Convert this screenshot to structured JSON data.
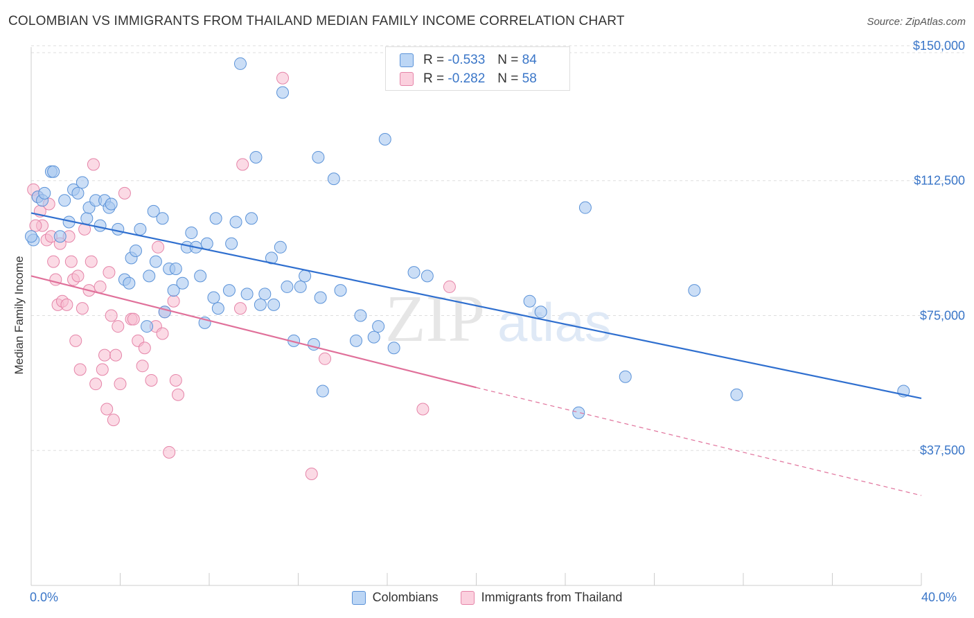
{
  "title": "COLOMBIAN VS IMMIGRANTS FROM THAILAND MEDIAN FAMILY INCOME CORRELATION CHART",
  "source": "Source: ZipAtlas.com",
  "watermark": {
    "zip": "ZIP",
    "atlas": "atlas"
  },
  "legend": {
    "series1": {
      "r_label": "R =",
      "r_value": "-0.533",
      "n_label": "N =",
      "n_value": "84"
    },
    "series2": {
      "r_label": "R =",
      "r_value": "-0.282",
      "n_label": "N =",
      "n_value": "58"
    }
  },
  "colors": {
    "blue_fill": "#a8c8f0",
    "blue_stroke": "#5a92d8",
    "blue_line": "#2f6fcf",
    "pink_fill": "#f7bcd0",
    "pink_stroke": "#e584a8",
    "pink_line": "#e0709a",
    "axis_text": "#3a76c8",
    "grid": "#dddddd"
  },
  "chart_data": {
    "type": "scatter",
    "title": "COLOMBIAN VS IMMIGRANTS FROM THAILAND MEDIAN FAMILY INCOME CORRELATION CHART",
    "xlabel": "",
    "ylabel": "Median Family Income",
    "xlim": [
      0,
      40
    ],
    "ylim": [
      0,
      155000
    ],
    "x_tick_labels": [
      "0.0%",
      "40.0%"
    ],
    "y_ticks": [
      37500,
      75000,
      112500,
      150000
    ],
    "y_tick_labels": [
      "$37,500",
      "$75,000",
      "$112,500",
      "$150,000"
    ],
    "grid": true,
    "legend_position": "top-center",
    "series": [
      {
        "name": "Colombians",
        "r": -0.533,
        "n": 84,
        "trend": {
          "x": [
            0,
            40
          ],
          "y": [
            103500,
            52000
          ]
        },
        "points": [
          [
            0.1,
            96000
          ],
          [
            0.3,
            108000
          ],
          [
            0.5,
            107000
          ],
          [
            0.6,
            109000
          ],
          [
            0.9,
            115000
          ],
          [
            1.0,
            115000
          ],
          [
            1.3,
            97000
          ],
          [
            1.5,
            107000
          ],
          [
            1.7,
            101000
          ],
          [
            1.9,
            110000
          ],
          [
            2.1,
            109000
          ],
          [
            2.3,
            112000
          ],
          [
            2.5,
            102000
          ],
          [
            2.6,
            105000
          ],
          [
            2.9,
            107000
          ],
          [
            3.1,
            100000
          ],
          [
            3.3,
            107000
          ],
          [
            3.5,
            105000
          ],
          [
            3.6,
            106000
          ],
          [
            3.9,
            99000
          ],
          [
            4.2,
            85000
          ],
          [
            4.4,
            84000
          ],
          [
            4.5,
            91000
          ],
          [
            4.7,
            93000
          ],
          [
            4.9,
            99000
          ],
          [
            5.2,
            72000
          ],
          [
            5.3,
            86000
          ],
          [
            5.5,
            104000
          ],
          [
            5.6,
            90000
          ],
          [
            5.9,
            102000
          ],
          [
            6.0,
            76000
          ],
          [
            6.2,
            88000
          ],
          [
            6.4,
            82000
          ],
          [
            6.5,
            88000
          ],
          [
            6.8,
            84000
          ],
          [
            7.0,
            94000
          ],
          [
            7.2,
            98000
          ],
          [
            7.4,
            94000
          ],
          [
            7.6,
            86000
          ],
          [
            7.8,
            73000
          ],
          [
            7.9,
            95000
          ],
          [
            8.2,
            80000
          ],
          [
            8.3,
            102000
          ],
          [
            8.4,
            77000
          ],
          [
            8.9,
            82000
          ],
          [
            9.0,
            95000
          ],
          [
            9.2,
            101000
          ],
          [
            9.4,
            145000
          ],
          [
            9.7,
            81000
          ],
          [
            9.9,
            102000
          ],
          [
            10.1,
            119000
          ],
          [
            10.3,
            78000
          ],
          [
            10.5,
            81000
          ],
          [
            10.8,
            91000
          ],
          [
            10.9,
            78000
          ],
          [
            11.2,
            94000
          ],
          [
            11.3,
            137000
          ],
          [
            11.5,
            83000
          ],
          [
            11.8,
            68000
          ],
          [
            12.1,
            83000
          ],
          [
            12.3,
            86000
          ],
          [
            12.7,
            67000
          ],
          [
            12.9,
            119000
          ],
          [
            13.0,
            80000
          ],
          [
            13.1,
            54000
          ],
          [
            13.6,
            113000
          ],
          [
            13.9,
            82000
          ],
          [
            14.6,
            68000
          ],
          [
            14.8,
            75000
          ],
          [
            15.4,
            69000
          ],
          [
            15.6,
            72000
          ],
          [
            15.9,
            124000
          ],
          [
            16.3,
            66000
          ],
          [
            17.2,
            87000
          ],
          [
            17.8,
            86000
          ],
          [
            22.4,
            79000
          ],
          [
            22.9,
            76000
          ],
          [
            24.6,
            48000
          ],
          [
            24.9,
            105000
          ],
          [
            26.7,
            58000
          ],
          [
            29.8,
            82000
          ],
          [
            31.7,
            53000
          ],
          [
            39.2,
            54000
          ],
          [
            0.0,
            97000
          ]
        ]
      },
      {
        "name": "Immigrants from Thailand",
        "r": -0.282,
        "n": 58,
        "trend": {
          "x": [
            0,
            20
          ],
          "y": [
            86000,
            55000
          ],
          "dashed_to": {
            "x": 40,
            "y": 25000
          }
        },
        "points": [
          [
            0.1,
            110000
          ],
          [
            0.3,
            108000
          ],
          [
            0.4,
            104000
          ],
          [
            0.5,
            100000
          ],
          [
            0.7,
            96000
          ],
          [
            0.8,
            106000
          ],
          [
            0.9,
            97000
          ],
          [
            1.0,
            90000
          ],
          [
            1.1,
            85000
          ],
          [
            1.2,
            78000
          ],
          [
            1.3,
            95000
          ],
          [
            1.4,
            79000
          ],
          [
            1.6,
            78000
          ],
          [
            1.7,
            97000
          ],
          [
            1.8,
            90000
          ],
          [
            1.9,
            85000
          ],
          [
            2.0,
            68000
          ],
          [
            2.1,
            86000
          ],
          [
            2.2,
            60000
          ],
          [
            2.3,
            77000
          ],
          [
            2.4,
            99000
          ],
          [
            2.6,
            82000
          ],
          [
            2.7,
            90000
          ],
          [
            2.8,
            117000
          ],
          [
            2.9,
            56000
          ],
          [
            3.1,
            83000
          ],
          [
            3.2,
            60000
          ],
          [
            3.3,
            64000
          ],
          [
            3.4,
            49000
          ],
          [
            3.5,
            87000
          ],
          [
            3.6,
            75000
          ],
          [
            3.7,
            46000
          ],
          [
            3.8,
            64000
          ],
          [
            3.9,
            72000
          ],
          [
            4.0,
            56000
          ],
          [
            4.2,
            109000
          ],
          [
            4.5,
            74000
          ],
          [
            4.6,
            74000
          ],
          [
            4.8,
            68000
          ],
          [
            5.0,
            61000
          ],
          [
            5.1,
            66000
          ],
          [
            5.4,
            57000
          ],
          [
            5.6,
            72000
          ],
          [
            5.7,
            94000
          ],
          [
            5.9,
            70000
          ],
          [
            6.2,
            37000
          ],
          [
            6.4,
            79000
          ],
          [
            6.5,
            57000
          ],
          [
            6.6,
            53000
          ],
          [
            9.4,
            77000
          ],
          [
            9.5,
            117000
          ],
          [
            11.3,
            141000
          ],
          [
            12.6,
            31000
          ],
          [
            13.2,
            63000
          ],
          [
            17.6,
            49000
          ],
          [
            18.8,
            83000
          ],
          [
            6.0,
            76000
          ],
          [
            0.2,
            100000
          ]
        ]
      }
    ]
  }
}
